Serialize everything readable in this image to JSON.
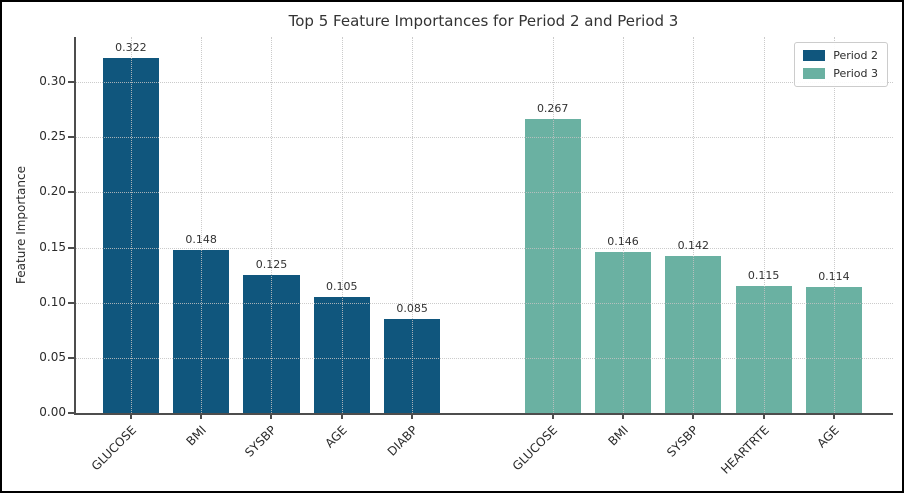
{
  "figure": {
    "title": "Top 5 Feature Importances for Period 2 and Period 3"
  },
  "axes": {
    "ylabel": "Feature Importance",
    "ytick_labels": [
      "0.00",
      "0.05",
      "0.10",
      "0.15",
      "0.20",
      "0.25",
      "0.30"
    ]
  },
  "legend": {
    "items": [
      {
        "label": "Period 2",
        "color": "#10567D"
      },
      {
        "label": "Period 3",
        "color": "#6AB1A2"
      }
    ]
  },
  "colors": {
    "period2": "#10567D",
    "period3": "#6AB1A2",
    "grid": "#c3c3c3",
    "spine": "#4d4d4d",
    "text": "#2b2b2b"
  },
  "chart_data": {
    "type": "bar",
    "title": "Top 5 Feature Importances for Period 2 and Period 3",
    "xlabel": "",
    "ylabel": "Feature Importance",
    "ylim": [
      0,
      0.341
    ],
    "yticks": [
      0.0,
      0.05,
      0.1,
      0.15,
      0.2,
      0.25,
      0.3
    ],
    "grid": true,
    "grid_style": "dotted",
    "legend_position": "upper right",
    "bar_value_labels": true,
    "series": [
      {
        "name": "Period 2",
        "color": "#10567D",
        "categories": [
          "GLUCOSE",
          "BMI",
          "SYSBP",
          "AGE",
          "DIABP"
        ],
        "values": [
          0.322,
          0.148,
          0.125,
          0.105,
          0.085
        ]
      },
      {
        "name": "Period 3",
        "color": "#6AB1A2",
        "categories": [
          "GLUCOSE",
          "BMI",
          "SYSBP",
          "HEARTRTE",
          "AGE"
        ],
        "values": [
          0.267,
          0.146,
          0.142,
          0.115,
          0.114
        ]
      }
    ]
  }
}
